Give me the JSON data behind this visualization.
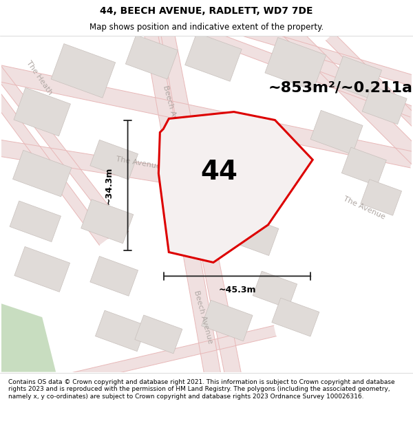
{
  "title": "44, BEECH AVENUE, RADLETT, WD7 7DE",
  "subtitle": "Map shows position and indicative extent of the property.",
  "area_label": "~853m²/~0.211ac.",
  "plot_number": "44",
  "dim_horizontal": "~45.3m",
  "dim_vertical": "~34.3m",
  "footer": "Contains OS data © Crown copyright and database right 2021. This information is subject to Crown copyright and database rights 2023 and is reproduced with the permission of HM Land Registry. The polygons (including the associated geometry, namely x, y co-ordinates) are subject to Crown copyright and database rights 2023 Ordnance Survey 100026316.",
  "map_bg": "#f7f4f2",
  "road_line_color": "#e8b8b8",
  "road_fill_color": "#f0e0e0",
  "building_color": "#e0dbd8",
  "building_edge": "#c8c0bc",
  "plot_outline_color": "#dd0000",
  "plot_fill_color": "#f5f0f0",
  "dim_line_color": "#222222",
  "street_label_color": "#b0a8a4",
  "green_color": "#c8ddc0",
  "figsize": [
    6.0,
    6.25
  ],
  "dpi": 100,
  "title_fontsize": 10,
  "subtitle_fontsize": 8.5,
  "area_fontsize": 16,
  "plot_num_fontsize": 28,
  "dim_fontsize": 9,
  "street_fontsize": 8,
  "footer_fontsize": 6.5
}
